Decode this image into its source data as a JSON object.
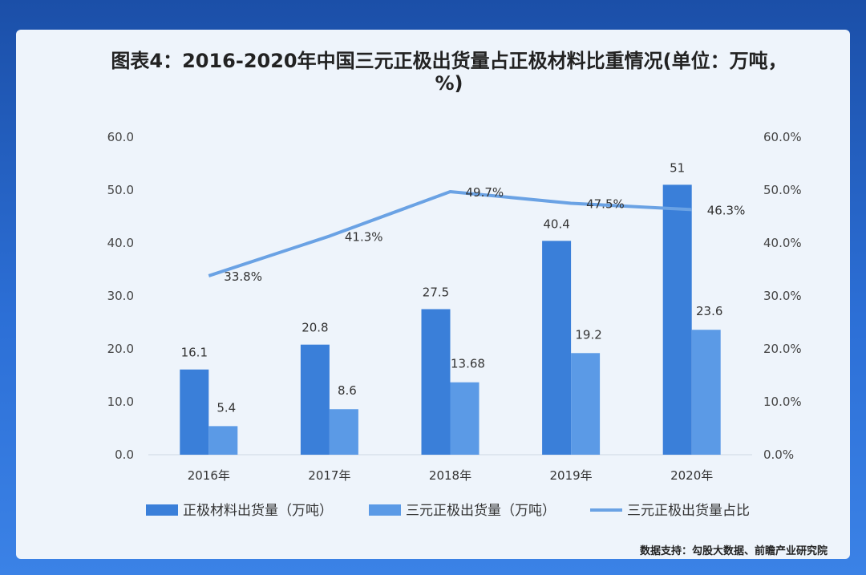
{
  "title": "图表4：2016-2020年中国三元正极出货量占正极材料比重情况(单位：万吨，%)",
  "source": "数据支持：勾股大数据、前瞻产业研究院",
  "chart_data": {
    "type": "bar",
    "categories": [
      "2016年",
      "2017年",
      "2018年",
      "2019年",
      "2020年"
    ],
    "series": [
      {
        "name": "正极材料出货量（万吨）",
        "type": "bar",
        "axis": "left",
        "color": "#3a7fd9",
        "values": [
          16.1,
          20.8,
          27.5,
          40.4,
          51
        ],
        "labels": [
          "16.1",
          "20.8",
          "27.5",
          "40.4",
          "51"
        ]
      },
      {
        "name": "三元正极出货量（万吨）",
        "type": "bar",
        "axis": "left",
        "color": "#5b9ae6",
        "values": [
          5.4,
          8.6,
          13.68,
          19.2,
          23.6
        ],
        "labels": [
          "5.4",
          "8.6",
          "13.68",
          "19.2",
          "23.6"
        ]
      },
      {
        "name": "三元正极出货量占比",
        "type": "line",
        "axis": "right",
        "color": "#6aa2e4",
        "values": [
          33.8,
          41.3,
          49.7,
          47.5,
          46.3
        ],
        "labels": [
          "33.8%",
          "41.3%",
          "49.7%",
          "47.5%",
          "46.3%"
        ]
      }
    ],
    "ylim": [
      0,
      60
    ],
    "y2lim": [
      0,
      60
    ],
    "yticks": [
      "0.0",
      "10.0",
      "20.0",
      "30.0",
      "40.0",
      "50.0",
      "60.0"
    ],
    "y2ticks": [
      "0.0%",
      "10.0%",
      "20.0%",
      "30.0%",
      "40.0%",
      "50.0%",
      "60.0%"
    ],
    "grid": false,
    "legend": "bottom"
  }
}
